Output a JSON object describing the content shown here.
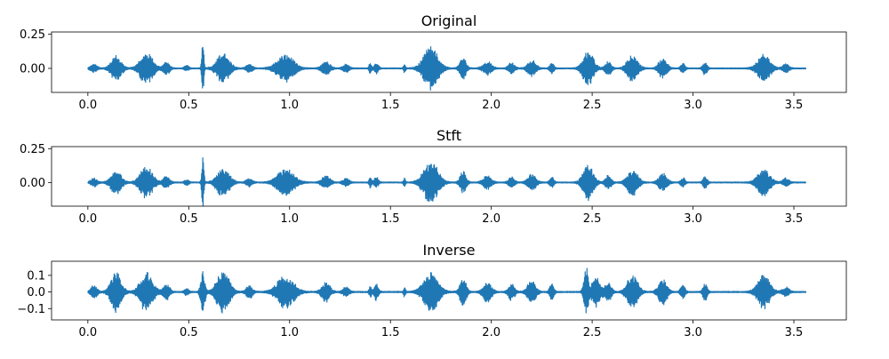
{
  "chart_data": [
    {
      "type": "line",
      "title": "Original",
      "xlabel": "",
      "ylabel": "",
      "xlim": [
        -0.18,
        3.76
      ],
      "ylim": [
        -0.175,
        0.265
      ],
      "xticks": [
        0.0,
        0.5,
        1.0,
        1.5,
        2.0,
        2.5,
        3.0,
        3.5
      ],
      "xtick_labels": [
        "0.0",
        "0.5",
        "1.0",
        "1.5",
        "2.0",
        "2.5",
        "3.0",
        "3.5"
      ],
      "yticks": [
        0.25,
        0.0
      ],
      "ytick_labels": [
        "0.25",
        "0.00"
      ],
      "grid": false,
      "color": "#1f77b4",
      "envelope": {
        "x_start": 0.0,
        "x_end": 3.56,
        "bursts": [
          {
            "x": 0.03,
            "width": 0.03,
            "amp": 0.03
          },
          {
            "x": 0.14,
            "width": 0.05,
            "amp": 0.09
          },
          {
            "x": 0.29,
            "width": 0.06,
            "amp": 0.12
          },
          {
            "x": 0.39,
            "width": 0.03,
            "amp": 0.05
          },
          {
            "x": 0.49,
            "width": 0.02,
            "amp": 0.02
          },
          {
            "x": 0.57,
            "width": 0.01,
            "amp": 0.22
          },
          {
            "x": 0.67,
            "width": 0.06,
            "amp": 0.11
          },
          {
            "x": 0.8,
            "width": 0.03,
            "amp": 0.03
          },
          {
            "x": 0.98,
            "width": 0.08,
            "amp": 0.1
          },
          {
            "x": 1.18,
            "width": 0.04,
            "amp": 0.05
          },
          {
            "x": 1.28,
            "width": 0.03,
            "amp": 0.03
          },
          {
            "x": 1.4,
            "width": 0.01,
            "amp": 0.05
          },
          {
            "x": 1.43,
            "width": 0.02,
            "amp": 0.04
          },
          {
            "x": 1.57,
            "width": 0.01,
            "amp": 0.03
          },
          {
            "x": 1.7,
            "width": 0.07,
            "amp": 0.16
          },
          {
            "x": 1.86,
            "width": 0.03,
            "amp": 0.08
          },
          {
            "x": 1.98,
            "width": 0.04,
            "amp": 0.05
          },
          {
            "x": 2.1,
            "width": 0.03,
            "amp": 0.04
          },
          {
            "x": 2.2,
            "width": 0.04,
            "amp": 0.06
          },
          {
            "x": 2.3,
            "width": 0.02,
            "amp": 0.04
          },
          {
            "x": 2.48,
            "width": 0.05,
            "amp": 0.13
          },
          {
            "x": 2.58,
            "width": 0.03,
            "amp": 0.05
          },
          {
            "x": 2.7,
            "width": 0.05,
            "amp": 0.1
          },
          {
            "x": 2.85,
            "width": 0.04,
            "amp": 0.07
          },
          {
            "x": 2.95,
            "width": 0.02,
            "amp": 0.04
          },
          {
            "x": 3.06,
            "width": 0.02,
            "amp": 0.05
          },
          {
            "x": 3.35,
            "width": 0.06,
            "amp": 0.1
          },
          {
            "x": 3.46,
            "width": 0.03,
            "amp": 0.03
          }
        ]
      }
    },
    {
      "type": "line",
      "title": "Stft",
      "xlabel": "",
      "ylabel": "",
      "xlim": [
        -0.18,
        3.76
      ],
      "ylim": [
        -0.175,
        0.265
      ],
      "xticks": [
        0.0,
        0.5,
        1.0,
        1.5,
        2.0,
        2.5,
        3.0,
        3.5
      ],
      "xtick_labels": [
        "0.0",
        "0.5",
        "1.0",
        "1.5",
        "2.0",
        "2.5",
        "3.0",
        "3.5"
      ],
      "yticks": [
        0.25,
        0.0
      ],
      "ytick_labels": [
        "0.25",
        "0.00"
      ],
      "grid": false,
      "color": "#1f77b4",
      "envelope": {
        "x_start": 0.0,
        "x_end": 3.56,
        "bursts": [
          {
            "x": 0.03,
            "width": 0.03,
            "amp": 0.03
          },
          {
            "x": 0.14,
            "width": 0.05,
            "amp": 0.09
          },
          {
            "x": 0.29,
            "width": 0.06,
            "amp": 0.12
          },
          {
            "x": 0.39,
            "width": 0.03,
            "amp": 0.05
          },
          {
            "x": 0.49,
            "width": 0.02,
            "amp": 0.02
          },
          {
            "x": 0.57,
            "width": 0.01,
            "amp": 0.22
          },
          {
            "x": 0.67,
            "width": 0.06,
            "amp": 0.11
          },
          {
            "x": 0.8,
            "width": 0.03,
            "amp": 0.03
          },
          {
            "x": 0.98,
            "width": 0.08,
            "amp": 0.1
          },
          {
            "x": 1.18,
            "width": 0.04,
            "amp": 0.05
          },
          {
            "x": 1.28,
            "width": 0.03,
            "amp": 0.03
          },
          {
            "x": 1.4,
            "width": 0.01,
            "amp": 0.05
          },
          {
            "x": 1.43,
            "width": 0.02,
            "amp": 0.04
          },
          {
            "x": 1.57,
            "width": 0.01,
            "amp": 0.03
          },
          {
            "x": 1.7,
            "width": 0.07,
            "amp": 0.16
          },
          {
            "x": 1.86,
            "width": 0.03,
            "amp": 0.08
          },
          {
            "x": 1.98,
            "width": 0.04,
            "amp": 0.05
          },
          {
            "x": 2.1,
            "width": 0.03,
            "amp": 0.04
          },
          {
            "x": 2.2,
            "width": 0.04,
            "amp": 0.06
          },
          {
            "x": 2.3,
            "width": 0.02,
            "amp": 0.04
          },
          {
            "x": 2.48,
            "width": 0.05,
            "amp": 0.13
          },
          {
            "x": 2.58,
            "width": 0.03,
            "amp": 0.05
          },
          {
            "x": 2.7,
            "width": 0.05,
            "amp": 0.1
          },
          {
            "x": 2.85,
            "width": 0.04,
            "amp": 0.07
          },
          {
            "x": 2.95,
            "width": 0.02,
            "amp": 0.04
          },
          {
            "x": 3.06,
            "width": 0.02,
            "amp": 0.05
          },
          {
            "x": 3.35,
            "width": 0.06,
            "amp": 0.1
          },
          {
            "x": 3.46,
            "width": 0.03,
            "amp": 0.03
          }
        ]
      }
    },
    {
      "type": "line",
      "title": "Inverse",
      "xlabel": "",
      "ylabel": "",
      "xlim": [
        -0.18,
        3.76
      ],
      "ylim": [
        -0.168,
        0.185
      ],
      "xticks": [
        0.0,
        0.5,
        1.0,
        1.5,
        2.0,
        2.5,
        3.0,
        3.5
      ],
      "xtick_labels": [
        "0.0",
        "0.5",
        "1.0",
        "1.5",
        "2.0",
        "2.5",
        "3.0",
        "3.5"
      ],
      "yticks": [
        0.1,
        0.0,
        -0.1
      ],
      "ytick_labels": [
        "0.1",
        "0.0",
        "−0.1"
      ],
      "grid": false,
      "color": "#1f77b4",
      "envelope": {
        "x_start": 0.0,
        "x_end": 3.56,
        "bursts": [
          {
            "x": 0.03,
            "width": 0.03,
            "amp": 0.04
          },
          {
            "x": 0.14,
            "width": 0.05,
            "amp": 0.12
          },
          {
            "x": 0.29,
            "width": 0.06,
            "amp": 0.12
          },
          {
            "x": 0.39,
            "width": 0.03,
            "amp": 0.05
          },
          {
            "x": 0.49,
            "width": 0.02,
            "amp": 0.02
          },
          {
            "x": 0.57,
            "width": 0.02,
            "amp": 0.13
          },
          {
            "x": 0.67,
            "width": 0.06,
            "amp": 0.13
          },
          {
            "x": 0.8,
            "width": 0.03,
            "amp": 0.04
          },
          {
            "x": 0.98,
            "width": 0.08,
            "amp": 0.1
          },
          {
            "x": 1.18,
            "width": 0.04,
            "amp": 0.06
          },
          {
            "x": 1.28,
            "width": 0.03,
            "amp": 0.03
          },
          {
            "x": 1.4,
            "width": 0.01,
            "amp": 0.04
          },
          {
            "x": 1.43,
            "width": 0.02,
            "amp": 0.05
          },
          {
            "x": 1.57,
            "width": 0.01,
            "amp": 0.03
          },
          {
            "x": 1.7,
            "width": 0.07,
            "amp": 0.12
          },
          {
            "x": 1.86,
            "width": 0.03,
            "amp": 0.09
          },
          {
            "x": 1.98,
            "width": 0.04,
            "amp": 0.06
          },
          {
            "x": 2.1,
            "width": 0.03,
            "amp": 0.05
          },
          {
            "x": 2.2,
            "width": 0.04,
            "amp": 0.07
          },
          {
            "x": 2.3,
            "width": 0.02,
            "amp": 0.05
          },
          {
            "x": 2.47,
            "width": 0.02,
            "amp": 0.16
          },
          {
            "x": 2.52,
            "width": 0.04,
            "amp": 0.09
          },
          {
            "x": 2.58,
            "width": 0.03,
            "amp": 0.06
          },
          {
            "x": 2.7,
            "width": 0.05,
            "amp": 0.11
          },
          {
            "x": 2.85,
            "width": 0.04,
            "amp": 0.08
          },
          {
            "x": 2.95,
            "width": 0.02,
            "amp": 0.05
          },
          {
            "x": 3.06,
            "width": 0.02,
            "amp": 0.06
          },
          {
            "x": 3.35,
            "width": 0.06,
            "amp": 0.1
          },
          {
            "x": 3.46,
            "width": 0.03,
            "amp": 0.03
          }
        ]
      }
    }
  ]
}
